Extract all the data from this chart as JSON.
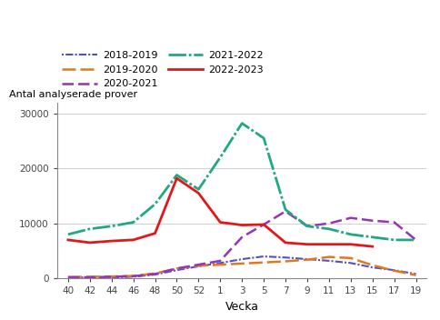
{
  "x_labels": [
    40,
    42,
    44,
    46,
    48,
    50,
    52,
    1,
    3,
    5,
    7,
    9,
    11,
    13,
    15,
    17,
    19
  ],
  "x_positions": [
    0,
    1,
    2,
    3,
    4,
    5,
    6,
    7,
    8,
    9,
    10,
    11,
    12,
    13,
    14,
    15,
    16
  ],
  "series": {
    "2018-2019": {
      "color": "#5050c8",
      "linestyle_key": "dotted_dash",
      "linewidth": 1.5,
      "values": [
        200,
        150,
        200,
        300,
        700,
        1500,
        2200,
        2800,
        3500,
        4000,
        3800,
        3500,
        3200,
        2800,
        2000,
        1500,
        800
      ]
    },
    "2019-2020": {
      "color": "#e07820",
      "linestyle_key": "long_dash",
      "linewidth": 1.8,
      "values": [
        250,
        300,
        350,
        450,
        900,
        1800,
        2300,
        2500,
        2700,
        2900,
        3100,
        3400,
        3900,
        3700,
        2400,
        1400,
        600
      ]
    },
    "2020-2021": {
      "color": "#9535b5",
      "linestyle_key": "dashed",
      "linewidth": 1.8,
      "values": [
        200,
        200,
        300,
        400,
        800,
        1800,
        2500,
        3200,
        7500,
        9800,
        12200,
        9500,
        10000,
        11000,
        10500,
        10200,
        7000
      ]
    },
    "2021-2022": {
      "color": "#20a882",
      "linestyle_key": "dashdot",
      "linewidth": 2.0,
      "values": [
        8000,
        9000,
        9500,
        10200,
        13500,
        18800,
        16200,
        22000,
        28200,
        25500,
        12500,
        9500,
        9000,
        8000,
        7500,
        7000,
        7000
      ]
    },
    "2022-2023": {
      "color": "#e01818",
      "linestyle_key": "solid",
      "linewidth": 2.0,
      "values": [
        7000,
        6500,
        6800,
        7000,
        8200,
        18200,
        15500,
        10200,
        9700,
        9800,
        6500,
        6200,
        6200,
        6200,
        5800,
        null,
        null
      ]
    }
  },
  "ylabel": "Antal analyserade prover",
  "xlabel": "Vecka",
  "ylim": [
    0,
    32000
  ],
  "yticks": [
    0,
    10000,
    20000,
    30000
  ],
  "grid_color": "#d0d0d0",
  "spine_color": "#888888"
}
